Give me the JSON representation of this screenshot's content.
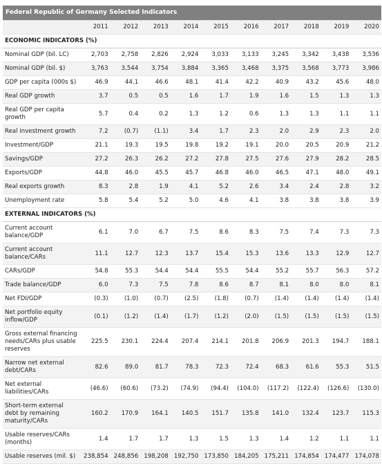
{
  "title": "Federal Republic of Germany Selected Indicators",
  "years": [
    "2011",
    "2012",
    "2013",
    "2014",
    "2015",
    "2016",
    "2017",
    "2018",
    "2019",
    "2020"
  ],
  "sections": [
    {
      "heading": "ECONOMIC INDICATORS (%)",
      "rows": [
        {
          "label": "Nominal GDP (bil. LC)",
          "values": [
            "2,703",
            "2,758",
            "2,826",
            "2,924",
            "3,033",
            "3,133",
            "3,245",
            "3,342",
            "3,438",
            "3,536"
          ]
        },
        {
          "label": "Nominal GDP (bil. $)",
          "values": [
            "3,763",
            "3,544",
            "3,754",
            "3,884",
            "3,365",
            "3,468",
            "3,375",
            "3,568",
            "3,773",
            "3,986"
          ]
        },
        {
          "label": "GDP per capita (000s $)",
          "values": [
            "46.9",
            "44.1",
            "46.6",
            "48.1",
            "41.4",
            "42.2",
            "40.9",
            "43.2",
            "45.6",
            "48.0"
          ]
        },
        {
          "label": "Real GDP growth",
          "values": [
            "3.7",
            "0.5",
            "0.5",
            "1.6",
            "1.7",
            "1.9",
            "1.6",
            "1.5",
            "1.3",
            "1.3"
          ]
        },
        {
          "label": "Real GDP per capita growth",
          "values": [
            "5.7",
            "0.4",
            "0.2",
            "1.3",
            "1.2",
            "0.6",
            "1.3",
            "1.3",
            "1.1",
            "1.1"
          ]
        },
        {
          "label": "Real investment growth",
          "values": [
            "7.2",
            "(0.7)",
            "(1.1)",
            "3.4",
            "1.7",
            "2.3",
            "2.0",
            "2.9",
            "2.3",
            "2.0"
          ]
        },
        {
          "label": "Investment/GDP",
          "values": [
            "21.1",
            "19.3",
            "19.5",
            "19.8",
            "19.2",
            "19.1",
            "20.0",
            "20.5",
            "20.9",
            "21.2"
          ]
        },
        {
          "label": "Savings/GDP",
          "values": [
            "27.2",
            "26.3",
            "26.2",
            "27.2",
            "27.8",
            "27.5",
            "27.6",
            "27.9",
            "28.2",
            "28.5"
          ]
        },
        {
          "label": "Exports/GDP",
          "values": [
            "44.8",
            "46.0",
            "45.5",
            "45.7",
            "46.8",
            "46.0",
            "46.5",
            "47.1",
            "48.0",
            "49.1"
          ]
        },
        {
          "label": "Real exports growth",
          "values": [
            "8.3",
            "2.8",
            "1.9",
            "4.1",
            "5.2",
            "2.6",
            "3.4",
            "2.4",
            "2.8",
            "3.2"
          ]
        },
        {
          "label": "Unemployment rate",
          "values": [
            "5.8",
            "5.4",
            "5.2",
            "5.0",
            "4.6",
            "4.1",
            "3.8",
            "3.8",
            "3.8",
            "3.9"
          ]
        }
      ]
    },
    {
      "heading": "EXTERNAL INDICATORS (%)",
      "rows": [
        {
          "label": "Current account balance/GDP",
          "values": [
            "6.1",
            "7.0",
            "6.7",
            "7.5",
            "8.6",
            "8.3",
            "7.5",
            "7.4",
            "7.3",
            "7.3"
          ]
        },
        {
          "label": "Current account balance/CARs",
          "values": [
            "11.1",
            "12.7",
            "12.3",
            "13.7",
            "15.4",
            "15.3",
            "13.6",
            "13.3",
            "12.9",
            "12.7"
          ]
        },
        {
          "label": "CARs/GDP",
          "values": [
            "54.8",
            "55.3",
            "54.4",
            "54.4",
            "55.5",
            "54.4",
            "55.2",
            "55.7",
            "56.3",
            "57.2"
          ]
        },
        {
          "label": "Trade balance/GDP",
          "values": [
            "6.0",
            "7.3",
            "7.5",
            "7.8",
            "8.6",
            "8.7",
            "8.1",
            "8.0",
            "8.0",
            "8.1"
          ]
        },
        {
          "label": "Net FDI/GDP",
          "values": [
            "(0.3)",
            "(1.0)",
            "(0.7)",
            "(2.5)",
            "(1.8)",
            "(0.7)",
            "(1.4)",
            "(1.4)",
            "(1.4)",
            "(1.4)"
          ]
        },
        {
          "label": "Net portfolio equity inflow/GDP",
          "values": [
            "(0.1)",
            "(1.2)",
            "(1.4)",
            "(1.7)",
            "(1.2)",
            "(2.0)",
            "(1.5)",
            "(1.5)",
            "(1.5)",
            "(1.5)"
          ]
        },
        {
          "label": "Gross external financing needs/CARs plus usable reserves",
          "values": [
            "225.5",
            "230.1",
            "224.4",
            "207.4",
            "214.1",
            "201.8",
            "206.9",
            "201.3",
            "194.7",
            "188.1"
          ]
        },
        {
          "label": "Narrow net external debt/CARs",
          "values": [
            "82.6",
            "89.0",
            "81.7",
            "78.3",
            "72.3",
            "72.4",
            "68.3",
            "61.6",
            "55.3",
            "51.5"
          ]
        },
        {
          "label": "Net external liabilities/CARs",
          "values": [
            "(46.6)",
            "(60.6)",
            "(73.2)",
            "(74.9)",
            "(94.4)",
            "(104.0)",
            "(117.2)",
            "(122.4)",
            "(126.6)",
            "(130.0)"
          ]
        },
        {
          "label": "Short-term external debt by remaining maturity/CARs",
          "values": [
            "160.2",
            "170.9",
            "164.1",
            "140.5",
            "151.7",
            "135.8",
            "141.0",
            "132.4",
            "123.7",
            "115.3"
          ]
        },
        {
          "label": "Usable reserves/CARs (months)",
          "values": [
            "1.4",
            "1.7",
            "1.7",
            "1.3",
            "1.5",
            "1.3",
            "1.4",
            "1.2",
            "1.1",
            "1.1"
          ]
        },
        {
          "label": "Usable reserves (mil. $)",
          "values": [
            "238,854",
            "248,856",
            "198,208",
            "192,750",
            "173,850",
            "184,205",
            "175,211",
            "174,854",
            "174,477",
            "174,078"
          ]
        }
      ]
    }
  ]
}
